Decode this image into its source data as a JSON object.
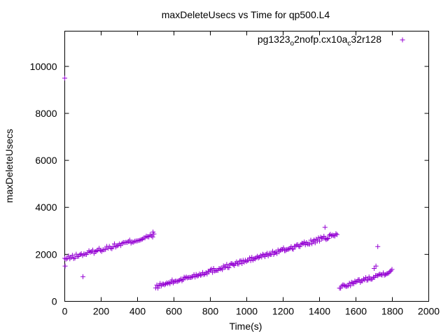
{
  "chart_data": {
    "type": "scatter",
    "title": "maxDeleteUsecs vs Time for qp500.L4",
    "xlabel": "Time(s)",
    "ylabel": "maxDeleteUsecs",
    "xlim": [
      0,
      2000
    ],
    "ylim": [
      0,
      11500
    ],
    "xticks": [
      "0",
      "200",
      "400",
      "600",
      "800",
      "1000",
      "1200",
      "1400",
      "1600",
      "1800",
      "2000"
    ],
    "yticks": [
      "0",
      "2000",
      "4000",
      "6000",
      "8000",
      "10000"
    ],
    "grid": false,
    "legend_position": "top-right",
    "marker": "plus",
    "color": "#9400d3",
    "legend": {
      "parts": [
        {
          "text": "pg1323",
          "sub": false
        },
        {
          "text": "o",
          "sub": true
        },
        {
          "text": "2nofp.cx10a",
          "sub": false
        },
        {
          "text": "c",
          "sub": true
        },
        {
          "text": "32r128",
          "sub": false
        }
      ]
    },
    "series": [
      {
        "segments": [
          {
            "x_start": 0,
            "x_end": 490,
            "y_start": 1800,
            "y_end": 2800,
            "step": 7,
            "noise": 90
          },
          {
            "x_start": 500,
            "x_end": 1500,
            "y_start": 620,
            "y_end": 2850,
            "step": 6,
            "noise": 90
          },
          {
            "x_start": 1510,
            "x_end": 1800,
            "y_start": 600,
            "y_end": 1300,
            "step": 6,
            "noise": 80
          }
        ],
        "outliers": [
          {
            "x": 0,
            "y": 9500
          },
          {
            "x": 2,
            "y": 1500
          },
          {
            "x": 100,
            "y": 1050
          },
          {
            "x": 485,
            "y": 2950
          },
          {
            "x": 1430,
            "y": 3150
          },
          {
            "x": 1720,
            "y": 2330
          },
          {
            "x": 1710,
            "y": 1500
          },
          {
            "x": 1700,
            "y": 1400
          }
        ]
      }
    ]
  }
}
